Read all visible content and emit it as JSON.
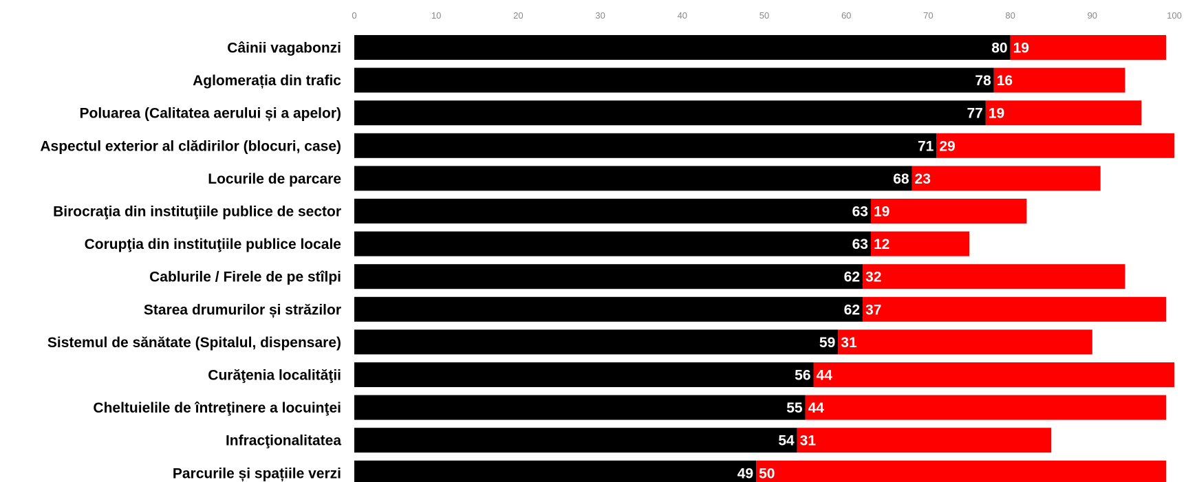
{
  "chart_data": {
    "type": "bar",
    "orientation": "horizontal",
    "stacked": true,
    "title": "",
    "xlabel": "",
    "ylabel": "",
    "xlim": [
      0,
      100
    ],
    "x_ticks": [
      0,
      10,
      20,
      30,
      40,
      50,
      60,
      70,
      80,
      90,
      100
    ],
    "axis_position": "top",
    "grid": false,
    "legend": "none",
    "categories": [
      "Câinii vagabonzi",
      "Aglomerația din trafic",
      "Poluarea (Calitatea aerului și a apelor)",
      "Aspectul exterior al clădirilor (blocuri, case)",
      "Locurile de parcare",
      "Birocraţia din instituţiile publice de sector",
      "Corupţia din instituţiile publice locale",
      "Cablurile / Firele de pe stîlpi",
      "Starea drumurilor și străzilor",
      "Sistemul de sănătate (Spitalul, dispensare)",
      "Curăţenia localităţii",
      "Cheltuielile de întreţinere a locuinţei",
      "Infracţionalitatea",
      "Parcurile și spațiile verzi"
    ],
    "series": [
      {
        "color": "#000000",
        "values": [
          80,
          78,
          77,
          71,
          68,
          63,
          63,
          62,
          62,
          59,
          56,
          55,
          54,
          49
        ]
      },
      {
        "color": "#ff0000",
        "values": [
          19,
          16,
          19,
          29,
          23,
          19,
          12,
          32,
          37,
          31,
          44,
          44,
          31,
          50
        ]
      }
    ]
  }
}
